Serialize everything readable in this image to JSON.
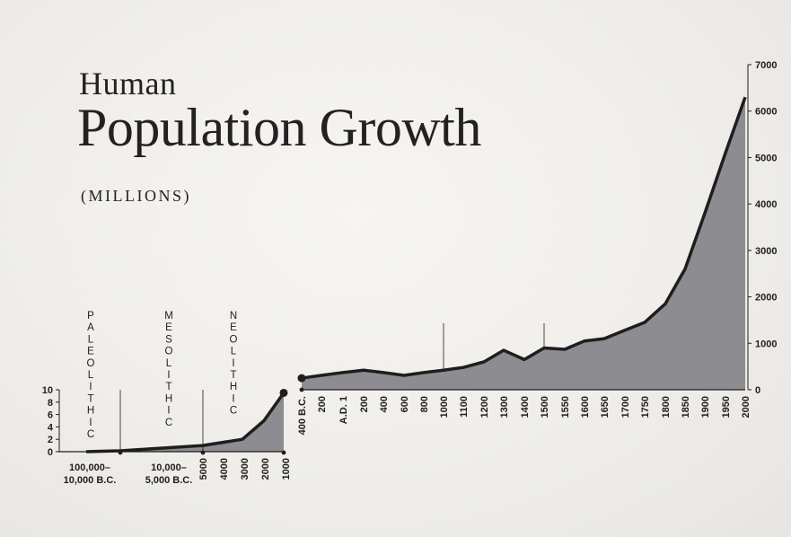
{
  "title": {
    "line1": "Human",
    "line2": "Population Growth",
    "unit": "(MILLIONS)"
  },
  "colors": {
    "area": "#8c8c91",
    "line": "#1e1e1e",
    "background": "#f1f0ed"
  },
  "eras": [
    "PALEOLITHIC",
    "MESOLITHIC",
    "NEOLITHIC"
  ],
  "chart_data": [
    {
      "type": "area",
      "title": "Human Population Growth (MILLIONS)",
      "xlabel": "",
      "ylabel": "",
      "ylim": [
        0,
        10
      ],
      "y_ticks": [
        "0",
        "2",
        "4",
        "6",
        "8",
        "10"
      ],
      "x_tick_labels": [
        "100,000–\n10,000 B.C.",
        "10,000–\n5,000 B.C.",
        "5000",
        "4000",
        "3000",
        "2000",
        "1000"
      ],
      "x": [
        "10000 B.C.",
        "5000 B.C.",
        "3000 B.C.",
        "2000 B.C.",
        "1000 B.C."
      ],
      "values": [
        0,
        1,
        2,
        5,
        9.5
      ]
    },
    {
      "type": "area",
      "xlabel": "",
      "ylabel": "",
      "ylim": [
        0,
        7000
      ],
      "y_ticks": [
        "0",
        "1000",
        "2000",
        "3000",
        "4000",
        "5000",
        "6000",
        "7000"
      ],
      "x": [
        "400 B.C.",
        "200",
        "A.D. 1",
        "200",
        "400",
        "600",
        "800",
        "1000",
        "1100",
        "1200",
        "1300",
        "1400",
        "1500",
        "1550",
        "1600",
        "1650",
        "1700",
        "1750",
        "1800",
        "1850",
        "1900",
        "1950",
        "2000"
      ],
      "values": [
        250,
        310,
        370,
        420,
        370,
        310,
        370,
        420,
        480,
        600,
        850,
        650,
        900,
        870,
        1050,
        1100,
        1280,
        1450,
        1850,
        2600,
        3800,
        5100,
        6300
      ]
    }
  ]
}
